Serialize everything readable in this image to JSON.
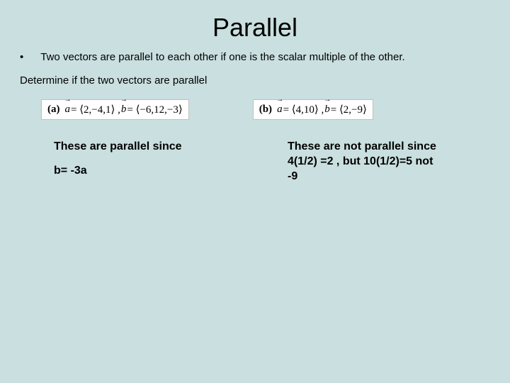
{
  "slide": {
    "title": "Parallel",
    "bullet": "Two vectors are parallel to each other if one is the scalar multiple of the other.",
    "subheading": "Determine if the two vectors are parallel"
  },
  "equations": {
    "a": {
      "label": "(a)",
      "a_vec": "a",
      "a_tuple": " = ⟨2,−4,1⟩ , ",
      "b_vec": "b",
      "b_tuple": " = ⟨−6,12,−3⟩"
    },
    "b": {
      "label": "(b)",
      "a_vec": "a",
      "a_tuple": " = ⟨4,10⟩ , ",
      "b_vec": "b",
      "b_tuple": " = ⟨2,−9⟩"
    }
  },
  "answers": {
    "a": {
      "line1": "These are parallel since",
      "line2": "b= -3a"
    },
    "b": {
      "text": "These are not parallel since 4(1/2) =2 , but 10(1/2)=5 not -9"
    }
  },
  "style": {
    "background_color": "#cadfdf",
    "title_fontsize": 36,
    "body_fontsize": 15,
    "answer_fontsize": 16,
    "text_color": "#000000",
    "eqbox_bg": "#ffffff",
    "eqbox_border": "#c0c0c0"
  }
}
